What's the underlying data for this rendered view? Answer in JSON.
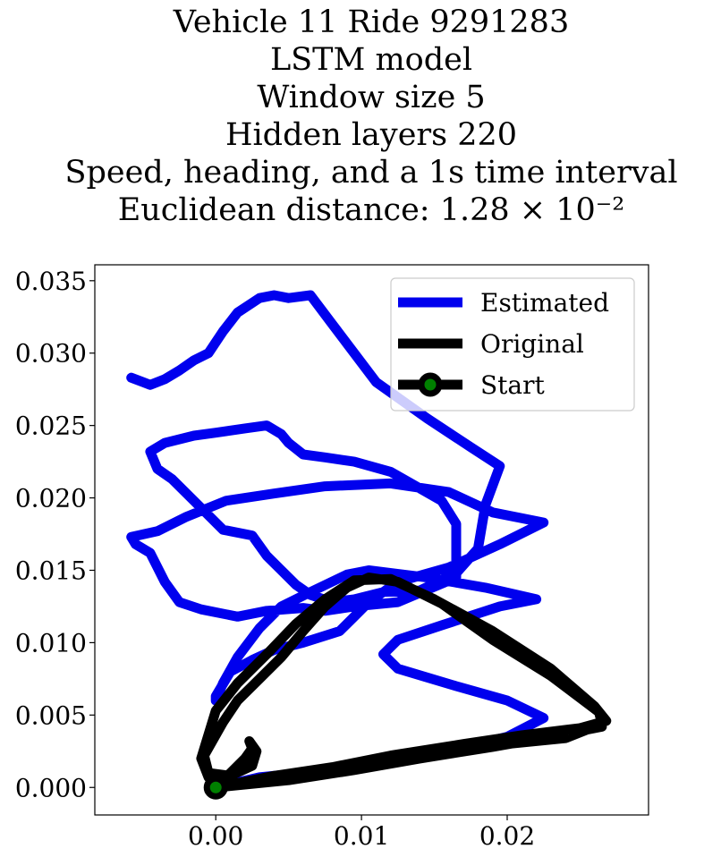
{
  "chart_data": {
    "type": "line",
    "title_lines": [
      "Vehicle 11 Ride 9291283",
      "LSTM model",
      "Window size 5",
      "Hidden layers 220",
      "Speed, heading, and a 1s time interval",
      "Euclidean distance: 1.28 × 10⁻²"
    ],
    "xlabel": "",
    "ylabel": "",
    "xlim": [
      -0.0083,
      0.0297
    ],
    "ylim": [
      -0.0019,
      0.0361
    ],
    "x_ticks": [
      "0.00",
      "0.01",
      "0.02"
    ],
    "x_tick_values": [
      0.0,
      0.01,
      0.02
    ],
    "y_ticks": [
      "0.000",
      "0.005",
      "0.010",
      "0.015",
      "0.020",
      "0.025",
      "0.030",
      "0.035"
    ],
    "y_tick_values": [
      0.0,
      0.005,
      0.01,
      0.015,
      0.02,
      0.025,
      0.03,
      0.035
    ],
    "grid": false,
    "legend_position": "top-right",
    "series": [
      {
        "name": "Estimated",
        "color": "#0000ee",
        "x": [
          0.0,
          0.003,
          0.008,
          0.012,
          0.016,
          0.02,
          0.0225,
          0.02,
          0.0165,
          0.0125,
          0.0115,
          0.0125,
          0.0155,
          0.0195,
          0.022,
          0.0185,
          0.0145,
          0.0105,
          0.009,
          0.0065,
          0.0045,
          0.003,
          0.0015,
          0.0005,
          0.0,
          0.0,
          0.001,
          0.0025,
          0.004,
          0.006,
          0.0085,
          0.0095,
          0.0105,
          0.0125,
          0.016,
          0.0195,
          0.0225,
          0.019,
          0.016,
          0.012,
          0.0075,
          0.004,
          0.0007,
          -0.002,
          -0.004,
          -0.0058,
          -0.0055,
          -0.0045,
          -0.0035,
          -0.0025,
          -0.001,
          0.0015,
          0.0035,
          0.006,
          0.0075,
          0.0095,
          0.0125,
          0.0165,
          0.0165,
          0.0165,
          0.0155,
          0.012,
          0.0095,
          0.0075,
          0.006,
          0.005,
          0.0045,
          0.0035,
          0.002,
          0.0,
          -0.0015,
          -0.0035,
          -0.0045,
          -0.004,
          -0.003,
          -0.0022,
          -0.001,
          0.0005,
          0.0025,
          0.0035,
          0.0045,
          0.0055,
          0.0065,
          0.008,
          0.0095,
          0.0115,
          0.014,
          0.0165,
          0.018,
          0.0185,
          0.0195,
          0.0175,
          0.0145,
          0.011,
          0.008,
          0.0065,
          0.005,
          0.004,
          0.003,
          0.0015,
          0.0005,
          -0.0005,
          -0.0015,
          -0.0025,
          -0.0035,
          -0.0045,
          -0.005,
          -0.0058
        ],
        "y": [
          0.0,
          0.0007,
          0.0012,
          0.0018,
          0.0025,
          0.0035,
          0.0048,
          0.006,
          0.007,
          0.0082,
          0.0092,
          0.0102,
          0.0112,
          0.0125,
          0.013,
          0.0138,
          0.0145,
          0.015,
          0.0147,
          0.0135,
          0.0125,
          0.011,
          0.009,
          0.0072,
          0.006,
          0.0063,
          0.008,
          0.0088,
          0.0095,
          0.01,
          0.0108,
          0.0118,
          0.0128,
          0.0142,
          0.0152,
          0.0168,
          0.0183,
          0.019,
          0.0204,
          0.021,
          0.0208,
          0.0203,
          0.0198,
          0.0187,
          0.0177,
          0.0173,
          0.0168,
          0.0162,
          0.0142,
          0.0128,
          0.0123,
          0.0118,
          0.0122,
          0.0124,
          0.0122,
          0.0125,
          0.0128,
          0.0145,
          0.0165,
          0.0182,
          0.0198,
          0.0218,
          0.0225,
          0.0228,
          0.023,
          0.0238,
          0.0244,
          0.025,
          0.0248,
          0.0245,
          0.0243,
          0.0238,
          0.0232,
          0.022,
          0.0213,
          0.0205,
          0.0193,
          0.0178,
          0.0174,
          0.016,
          0.015,
          0.014,
          0.0133,
          0.0128,
          0.013,
          0.0135,
          0.0136,
          0.0148,
          0.0165,
          0.0195,
          0.0222,
          0.0235,
          0.0255,
          0.028,
          0.032,
          0.034,
          0.0338,
          0.034,
          0.0338,
          0.0328,
          0.0315,
          0.03,
          0.0295,
          0.0288,
          0.0282,
          0.0278,
          0.028,
          0.0283
        ]
      },
      {
        "name": "Original",
        "color": "#000000",
        "x": [
          0.0,
          0.005,
          0.01,
          0.015,
          0.02,
          0.024,
          0.0265,
          0.0263,
          0.023,
          0.019,
          0.0155,
          0.0125,
          0.0105,
          0.009,
          0.0075,
          0.006,
          0.0045,
          0.003,
          0.0015,
          0.0005,
          -0.0008,
          -0.0005,
          0.001,
          0.0025,
          0.0028,
          0.0023,
          0.0025,
          0.002,
          0.0,
          0.004,
          0.008,
          0.012,
          0.017,
          0.021,
          0.025,
          0.0268,
          0.026,
          0.023,
          0.019,
          0.015,
          0.012,
          0.0095,
          0.0075,
          0.0055,
          0.0035,
          0.0015,
          0.0,
          -0.001,
          -0.0005,
          0.001,
          0.0005,
          0.0,
          0.005,
          0.0095,
          0.014,
          0.019,
          0.0235,
          0.0265
        ],
        "y": [
          0.0,
          0.0005,
          0.0013,
          0.0022,
          0.003,
          0.0034,
          0.0044,
          0.0052,
          0.0077,
          0.0102,
          0.0127,
          0.0142,
          0.0145,
          0.0138,
          0.0125,
          0.0108,
          0.009,
          0.0075,
          0.006,
          0.0045,
          0.0022,
          0.001,
          0.0008,
          0.0015,
          0.0025,
          0.0032,
          0.0027,
          0.002,
          0.0,
          0.0008,
          0.0014,
          0.0022,
          0.003,
          0.0036,
          0.0041,
          0.0046,
          0.0056,
          0.0082,
          0.0108,
          0.013,
          0.0144,
          0.0143,
          0.013,
          0.0113,
          0.0092,
          0.0072,
          0.0053,
          0.002,
          0.0007,
          0.0005,
          0.0002,
          0.0,
          0.0005,
          0.0012,
          0.002,
          0.0028,
          0.0036,
          0.0042
        ]
      }
    ],
    "start_marker": {
      "name": "Start",
      "x": 0.0,
      "y": 0.0,
      "face_color": "#008000",
      "edge_color": "#000000"
    },
    "legend_entries": [
      "Estimated",
      "Original",
      "Start"
    ]
  }
}
